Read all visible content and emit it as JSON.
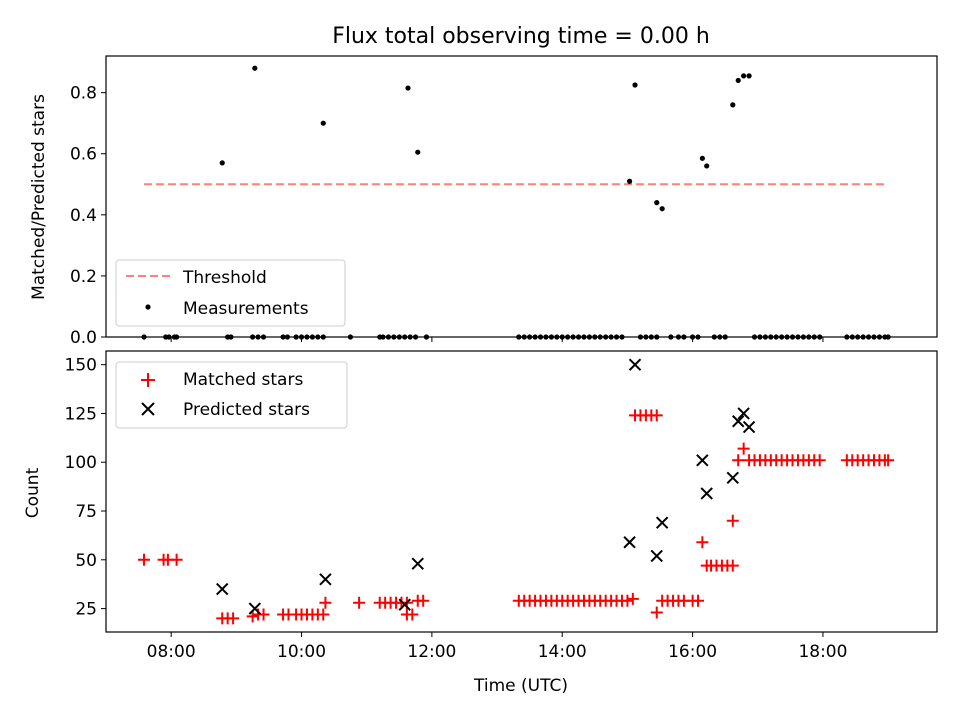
{
  "chart_data": [
    {
      "type": "scatter",
      "title": "Flux total observing time = 0.00 h",
      "xlabel": "",
      "ylabel": "Matched/Predicted stars",
      "xlim": [
        "07:00",
        "19:45"
      ],
      "ylim": [
        0,
        0.92
      ],
      "yticks": [
        "0.0",
        "0.2",
        "0.4",
        "0.6",
        "0.8"
      ],
      "legend": {
        "position": "lower-left",
        "entries": [
          "Threshold",
          "Measurements"
        ]
      },
      "threshold": {
        "name": "Threshold",
        "value": 0.5,
        "x_start": "07:35",
        "x_end": "19:00",
        "color": "#ff7f7f",
        "style": "dashed"
      },
      "series": [
        {
          "name": "Measurements",
          "color": "#000000",
          "marker": "dot",
          "points": [
            [
              "07:35",
              0
            ],
            [
              "07:55",
              0
            ],
            [
              "07:58",
              0
            ],
            [
              "08:03",
              0
            ],
            [
              "08:05",
              0
            ],
            [
              "08:47",
              0.57
            ],
            [
              "08:52",
              0
            ],
            [
              "08:55",
              0
            ],
            [
              "09:15",
              0
            ],
            [
              "09:17",
              0.88
            ],
            [
              "09:20",
              0
            ],
            [
              "09:25",
              0
            ],
            [
              "09:43",
              0
            ],
            [
              "09:47",
              0
            ],
            [
              "09:55",
              0
            ],
            [
              "10:00",
              0
            ],
            [
              "10:05",
              0
            ],
            [
              "10:10",
              0
            ],
            [
              "10:15",
              0
            ],
            [
              "10:20",
              0
            ],
            [
              "10:20",
              0.7
            ],
            [
              "10:45",
              0
            ],
            [
              "11:12",
              0
            ],
            [
              "11:15",
              0
            ],
            [
              "11:20",
              0
            ],
            [
              "11:25",
              0
            ],
            [
              "11:30",
              0
            ],
            [
              "11:35",
              0
            ],
            [
              "11:38",
              0.815
            ],
            [
              "11:40",
              0
            ],
            [
              "11:45",
              0
            ],
            [
              "11:47",
              0.605
            ],
            [
              "11:55",
              0
            ],
            [
              "13:20",
              0
            ],
            [
              "13:25",
              0
            ],
            [
              "13:30",
              0
            ],
            [
              "13:35",
              0
            ],
            [
              "13:40",
              0
            ],
            [
              "13:45",
              0
            ],
            [
              "13:50",
              0
            ],
            [
              "13:55",
              0
            ],
            [
              "14:00",
              0
            ],
            [
              "14:05",
              0
            ],
            [
              "14:10",
              0
            ],
            [
              "14:15",
              0
            ],
            [
              "14:20",
              0
            ],
            [
              "14:25",
              0
            ],
            [
              "14:30",
              0
            ],
            [
              "14:35",
              0
            ],
            [
              "14:40",
              0
            ],
            [
              "14:45",
              0
            ],
            [
              "14:50",
              0
            ],
            [
              "14:55",
              0
            ],
            [
              "15:02",
              0.51
            ],
            [
              "15:07",
              0.825
            ],
            [
              "15:12",
              0
            ],
            [
              "15:17",
              0
            ],
            [
              "15:22",
              0
            ],
            [
              "15:27",
              0
            ],
            [
              "15:27",
              0.44
            ],
            [
              "15:32",
              0.42
            ],
            [
              "15:40",
              0
            ],
            [
              "15:47",
              0
            ],
            [
              "15:52",
              0
            ],
            [
              "16:00",
              0
            ],
            [
              "16:05",
              0
            ],
            [
              "16:09",
              0.585
            ],
            [
              "16:13",
              0.56
            ],
            [
              "16:20",
              0
            ],
            [
              "16:25",
              0
            ],
            [
              "16:30",
              0
            ],
            [
              "16:37",
              0.76
            ],
            [
              "16:42",
              0.84
            ],
            [
              "16:47",
              0.855
            ],
            [
              "16:52",
              0.855
            ],
            [
              "16:57",
              0
            ],
            [
              "17:02",
              0
            ],
            [
              "17:07",
              0
            ],
            [
              "17:12",
              0
            ],
            [
              "17:17",
              0
            ],
            [
              "17:22",
              0
            ],
            [
              "17:27",
              0
            ],
            [
              "17:32",
              0
            ],
            [
              "17:37",
              0
            ],
            [
              "17:42",
              0
            ],
            [
              "17:47",
              0
            ],
            [
              "17:52",
              0
            ],
            [
              "17:57",
              0
            ],
            [
              "18:22",
              0
            ],
            [
              "18:27",
              0
            ],
            [
              "18:32",
              0
            ],
            [
              "18:37",
              0
            ],
            [
              "18:42",
              0
            ],
            [
              "18:47",
              0
            ],
            [
              "18:52",
              0
            ],
            [
              "18:57",
              0
            ],
            [
              "19:00",
              0
            ]
          ]
        }
      ]
    },
    {
      "type": "scatter",
      "title": "",
      "xlabel": "Time (UTC)",
      "ylabel": "Count",
      "xlim": [
        "07:00",
        "19:45"
      ],
      "ylim": [
        13,
        157
      ],
      "xticks": [
        "08:00",
        "10:00",
        "12:00",
        "14:00",
        "16:00",
        "18:00"
      ],
      "yticks": [
        "25",
        "50",
        "75",
        "100",
        "125",
        "150"
      ],
      "legend": {
        "position": "upper-left",
        "entries": [
          "Matched stars",
          "Predicted stars"
        ]
      },
      "series": [
        {
          "name": "Matched stars",
          "color": "#ff0000",
          "marker": "plus",
          "points": [
            [
              "07:35",
              50
            ],
            [
              "07:53",
              50
            ],
            [
              "07:57",
              50
            ],
            [
              "08:05",
              50
            ],
            [
              "08:47",
              20
            ],
            [
              "08:52",
              20
            ],
            [
              "08:57",
              20
            ],
            [
              "09:15",
              21
            ],
            [
              "09:20",
              22
            ],
            [
              "09:25",
              22
            ],
            [
              "09:43",
              22
            ],
            [
              "09:48",
              22
            ],
            [
              "09:55",
              22
            ],
            [
              "10:00",
              22
            ],
            [
              "10:05",
              22
            ],
            [
              "10:10",
              22
            ],
            [
              "10:15",
              22
            ],
            [
              "10:20",
              22
            ],
            [
              "10:22",
              28
            ],
            [
              "10:53",
              28
            ],
            [
              "11:12",
              28
            ],
            [
              "11:17",
              28
            ],
            [
              "11:22",
              28
            ],
            [
              "11:27",
              28
            ],
            [
              "11:32",
              28
            ],
            [
              "11:37",
              28
            ],
            [
              "11:37",
              22
            ],
            [
              "11:42",
              22
            ],
            [
              "11:47",
              29
            ],
            [
              "11:52",
              29
            ],
            [
              "13:20",
              29
            ],
            [
              "13:25",
              29
            ],
            [
              "13:30",
              29
            ],
            [
              "13:35",
              29
            ],
            [
              "13:40",
              29
            ],
            [
              "13:45",
              29
            ],
            [
              "13:50",
              29
            ],
            [
              "13:55",
              29
            ],
            [
              "14:00",
              29
            ],
            [
              "14:05",
              29
            ],
            [
              "14:10",
              29
            ],
            [
              "14:15",
              29
            ],
            [
              "14:20",
              29
            ],
            [
              "14:25",
              29
            ],
            [
              "14:30",
              29
            ],
            [
              "14:35",
              29
            ],
            [
              "14:40",
              29
            ],
            [
              "14:45",
              29
            ],
            [
              "14:50",
              29
            ],
            [
              "14:55",
              29
            ],
            [
              "15:00",
              29
            ],
            [
              "15:05",
              30
            ],
            [
              "15:07",
              124
            ],
            [
              "15:12",
              124
            ],
            [
              "15:17",
              124
            ],
            [
              "15:22",
              124
            ],
            [
              "15:27",
              124
            ],
            [
              "15:27",
              23
            ],
            [
              "15:32",
              29
            ],
            [
              "15:37",
              29
            ],
            [
              "15:42",
              29
            ],
            [
              "15:47",
              29
            ],
            [
              "15:52",
              29
            ],
            [
              "16:00",
              29
            ],
            [
              "16:05",
              29
            ],
            [
              "16:09",
              59
            ],
            [
              "16:13",
              47
            ],
            [
              "16:17",
              47
            ],
            [
              "16:22",
              47
            ],
            [
              "16:27",
              47
            ],
            [
              "16:32",
              47
            ],
            [
              "16:37",
              47
            ],
            [
              "16:37",
              70
            ],
            [
              "16:42",
              101
            ],
            [
              "16:47",
              107
            ],
            [
              "16:52",
              101
            ],
            [
              "16:57",
              101
            ],
            [
              "17:02",
              101
            ],
            [
              "17:07",
              101
            ],
            [
              "17:12",
              101
            ],
            [
              "17:17",
              101
            ],
            [
              "17:22",
              101
            ],
            [
              "17:27",
              101
            ],
            [
              "17:32",
              101
            ],
            [
              "17:37",
              101
            ],
            [
              "17:42",
              101
            ],
            [
              "17:47",
              101
            ],
            [
              "17:52",
              101
            ],
            [
              "17:57",
              101
            ],
            [
              "18:22",
              101
            ],
            [
              "18:27",
              101
            ],
            [
              "18:32",
              101
            ],
            [
              "18:37",
              101
            ],
            [
              "18:42",
              101
            ],
            [
              "18:47",
              101
            ],
            [
              "18:52",
              101
            ],
            [
              "18:57",
              101
            ],
            [
              "19:00",
              101
            ]
          ]
        },
        {
          "name": "Predicted stars",
          "color": "#000000",
          "marker": "x",
          "points": [
            [
              "08:47",
              35
            ],
            [
              "09:17",
              25
            ],
            [
              "10:22",
              40
            ],
            [
              "11:35",
              27
            ],
            [
              "11:47",
              48
            ],
            [
              "15:02",
              59
            ],
            [
              "15:07",
              150
            ],
            [
              "15:27",
              52
            ],
            [
              "15:32",
              69
            ],
            [
              "16:09",
              101
            ],
            [
              "16:13",
              84
            ],
            [
              "16:37",
              92
            ],
            [
              "16:42",
              121
            ],
            [
              "16:47",
              125
            ],
            [
              "16:52",
              118
            ]
          ]
        }
      ]
    }
  ]
}
